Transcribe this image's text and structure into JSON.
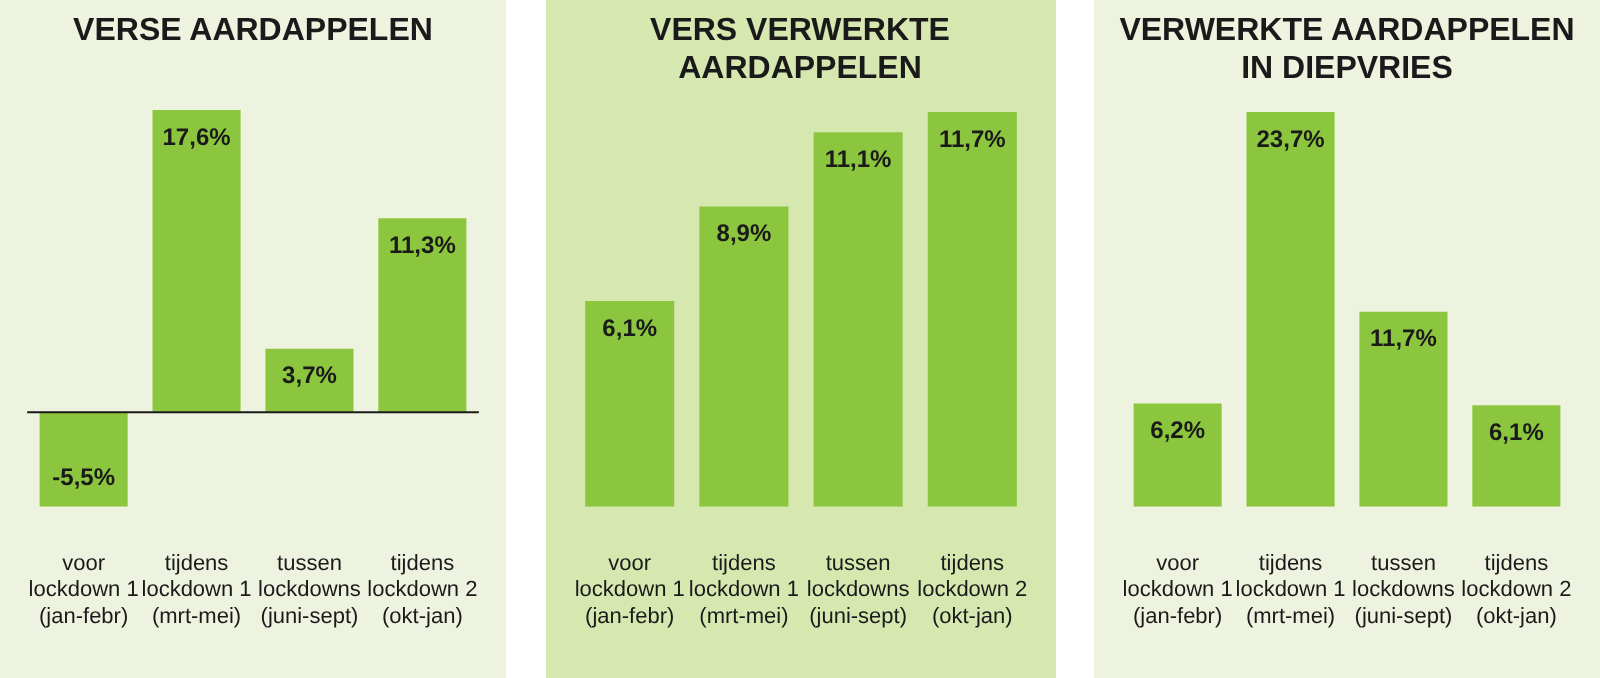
{
  "chart_data": [
    {
      "type": "bar",
      "title": "VERSE AARDAPPELEN",
      "categories": [
        "voor\nlockdown 1\n(jan-febr)",
        "tijdens\nlockdown 1\n(mrt-mei)",
        "tussen\nlockdowns\n(juni-sept)",
        "tijdens\nlockdown 2\n(okt-jan)"
      ],
      "values": [
        -5.5,
        17.6,
        3.7,
        11.3
      ],
      "color": "#8cc63e",
      "value_labels": [
        "-5,5%",
        "17,6%",
        "3,7%",
        "11,3%"
      ]
    },
    {
      "type": "bar",
      "title": "VERS VERWERKTE AARDAPPELEN",
      "categories": [
        "voor\nlockdown 1\n(jan-febr)",
        "tijdens\nlockdown 1\n(mrt-mei)",
        "tussen\nlockdowns\n(juni-sept)",
        "tijdens\nlockdown 2\n(okt-jan)"
      ],
      "values": [
        6.1,
        8.9,
        11.1,
        11.7
      ],
      "color": "#8cc63e",
      "value_labels": [
        "6,1%",
        "8,9%",
        "11,1%",
        "11,7%"
      ]
    },
    {
      "type": "bar",
      "title": "VERWERKTE AARDAPPELEN IN DIEPVRIES",
      "categories": [
        "voor\nlockdown 1\n(jan-febr)",
        "tijdens\nlockdown 1\n(mrt-mei)",
        "tussen\nlockdowns\n(juni-sept)",
        "tijdens\nlockdown 2\n(okt-jan)"
      ],
      "values": [
        6.2,
        23.7,
        11.7,
        6.1
      ],
      "color": "#8cc63e",
      "value_labels": [
        "6,2%",
        "23,7%",
        "11,7%",
        "6,1%"
      ]
    }
  ]
}
